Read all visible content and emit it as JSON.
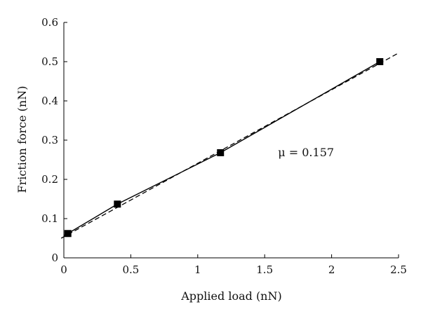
{
  "chart_data": {
    "type": "scatter",
    "xlabel": "Applied load (nN)",
    "ylabel": "Friction force (nN)",
    "xlim": [
      0,
      2.5
    ],
    "ylim": [
      0,
      0.6
    ],
    "x_ticks": [
      0,
      0.5,
      1,
      1.5,
      2,
      2.5
    ],
    "y_ticks": [
      0,
      0.1,
      0.2,
      0.3,
      0.4,
      0.5,
      0.6
    ],
    "x_tick_labels": [
      "0",
      "0.5",
      "1",
      "1.5",
      "2",
      "2.5"
    ],
    "y_tick_labels": [
      "0",
      "0.1",
      "0.2",
      "0.3",
      "0.4",
      "0.5",
      "0.6"
    ],
    "grid": false,
    "series": [
      {
        "type": "scatter",
        "marker": "square",
        "x": [
          0.03,
          0.4,
          1.17,
          2.36
        ],
        "y": [
          0.062,
          0.137,
          0.268,
          0.5
        ]
      },
      {
        "type": "line",
        "style": "solid",
        "x": [
          0.0,
          0.03,
          0.4,
          1.17,
          2.36
        ],
        "y": [
          0.057,
          0.062,
          0.137,
          0.268,
          0.5
        ]
      },
      {
        "type": "line",
        "style": "dashed",
        "x": [
          -0.02,
          2.5
        ],
        "y": [
          0.05,
          0.522
        ]
      }
    ],
    "annotations": [
      {
        "text": "μ = 0.157",
        "x": 1.6,
        "y": 0.268
      }
    ]
  }
}
